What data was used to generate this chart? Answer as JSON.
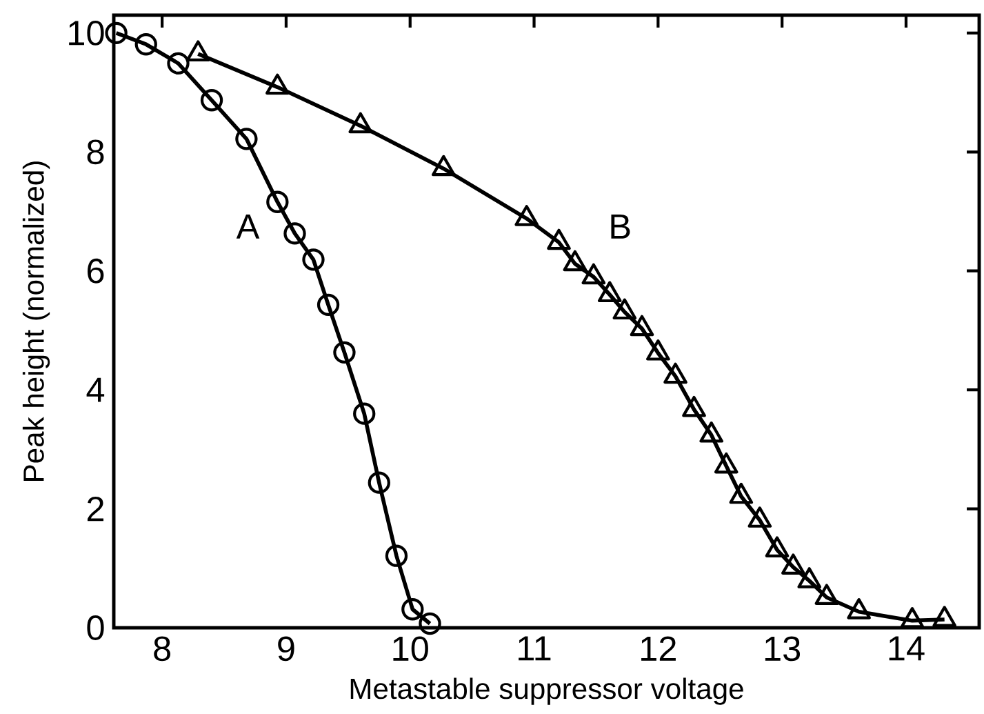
{
  "chart_data": {
    "type": "line",
    "xlabel": "Metastable suppressor voltage",
    "ylabel": "Peak height      (normalized)",
    "xlim": [
      7.61,
      14.59
    ],
    "ylim": [
      0,
      10.3
    ],
    "xticks": [
      8,
      9,
      10,
      11,
      12,
      13,
      14
    ],
    "yticks": [
      0,
      2,
      4,
      6,
      8,
      10
    ],
    "grid": false,
    "line_style": "solid",
    "series": [
      {
        "color": "#000000",
        "marker": "circle",
        "x": [
          7.63,
          7.87,
          8.13,
          8.4,
          8.68,
          8.93,
          9.07,
          9.22,
          9.34,
          9.47,
          9.63,
          9.75,
          9.89,
          10.02,
          10.16
        ],
        "values": [
          10.0,
          9.81,
          9.49,
          8.87,
          8.22,
          7.16,
          6.63,
          6.19,
          5.43,
          4.63,
          3.6,
          2.44,
          1.21,
          0.31,
          0.07
        ]
      },
      {
        "color": "#000000",
        "marker": "triangle",
        "x": [
          8.29,
          8.93,
          9.6,
          10.27,
          10.94,
          11.2,
          11.33,
          11.48,
          11.61,
          11.73,
          11.87,
          12.0,
          12.14,
          12.29,
          12.43,
          12.55,
          12.67,
          12.82,
          12.96,
          13.09,
          13.22,
          13.36,
          13.62,
          14.05,
          14.31
        ],
        "values": [
          9.65,
          9.09,
          8.44,
          7.72,
          6.88,
          6.48,
          6.12,
          5.9,
          5.6,
          5.31,
          5.03,
          4.62,
          4.23,
          3.67,
          3.24,
          2.72,
          2.21,
          1.81,
          1.31,
          1.02,
          0.79,
          0.51,
          0.27,
          0.12,
          0.14
        ]
      }
    ],
    "annotations": [
      "A",
      "B"
    ]
  }
}
